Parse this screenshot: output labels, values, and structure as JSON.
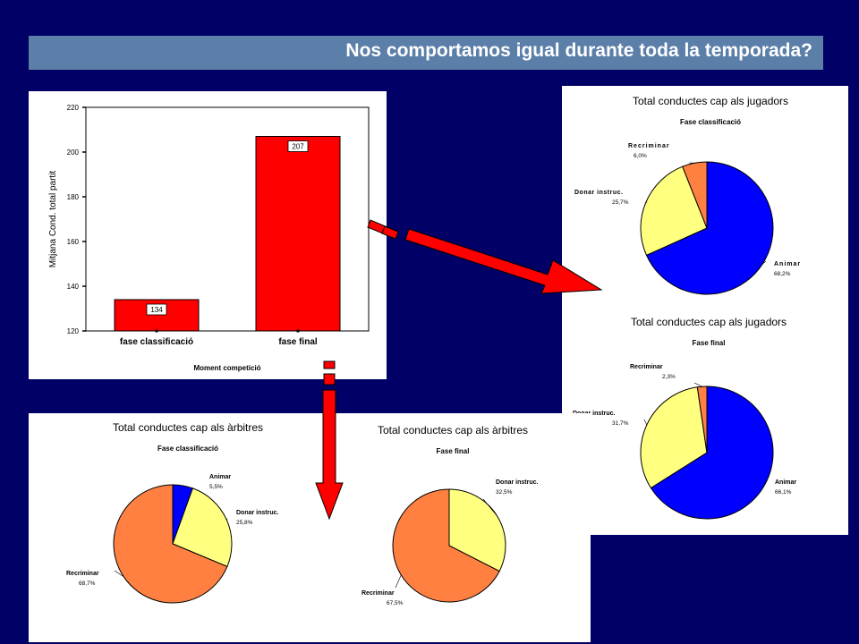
{
  "slide": {
    "title": "Nos comportamos igual durante toda la temporada?"
  },
  "colors": {
    "background": "#000066",
    "title_bar": "#5b7fa8",
    "bar": "#ff0000",
    "animar": "#0000ff",
    "donar": "#ffff80",
    "recriminar": "#ff8040",
    "arrow": "#ff0000"
  },
  "chart_data": [
    {
      "type": "bar",
      "categories": [
        "fase classificació",
        "fase final"
      ],
      "values": [
        134,
        207
      ],
      "data_labels": [
        "134",
        "207"
      ],
      "xlabel": "Moment competició",
      "ylabel": "Mitjana Cond. total partit",
      "ylim": [
        120,
        220
      ],
      "yticks": [
        120,
        140,
        160,
        180,
        200,
        220
      ],
      "grid": false
    },
    {
      "type": "pie",
      "title": "Total conductes cap als jugadors",
      "subtitle": "Fase classificació",
      "slices": [
        {
          "label": "Animar",
          "value": 68.2,
          "pct_label": "68,2%",
          "color": "#0000ff"
        },
        {
          "label": "Donar instruc.",
          "value": 25.7,
          "pct_label": "25,7%",
          "color": "#ffff80"
        },
        {
          "label": "Recriminar",
          "value": 6.0,
          "pct_label": "6,0%",
          "color": "#ff8040"
        }
      ]
    },
    {
      "type": "pie",
      "title": "Total conductes cap als jugadors",
      "subtitle": "Fase final",
      "slices": [
        {
          "label": "Animar",
          "value": 66.1,
          "pct_label": "66,1%",
          "color": "#0000ff"
        },
        {
          "label": "Donar instruc.",
          "value": 31.7,
          "pct_label": "31,7%",
          "color": "#ffff80"
        },
        {
          "label": "Recriminar",
          "value": 2.3,
          "pct_label": "2,3%",
          "color": "#ff8040"
        }
      ]
    },
    {
      "type": "pie",
      "title": "Total conductes cap als àrbitres",
      "subtitle": "Fase classificació",
      "slices": [
        {
          "label": "Animar",
          "value": 5.5,
          "pct_label": "5,5%",
          "color": "#0000ff"
        },
        {
          "label": "Donar instruc.",
          "value": 25.8,
          "pct_label": "25,8%",
          "color": "#ffff80"
        },
        {
          "label": "Recriminar",
          "value": 68.7,
          "pct_label": "68,7%",
          "color": "#ff8040"
        }
      ]
    },
    {
      "type": "pie",
      "title": "Total conductes cap als àrbitres",
      "subtitle": "Fase final",
      "slices": [
        {
          "label": "Donar instruc.",
          "value": 32.5,
          "pct_label": "32,5%",
          "color": "#ffff80"
        },
        {
          "label": "Recriminar",
          "value": 67.5,
          "pct_label": "67,5%",
          "color": "#ff8040"
        }
      ]
    }
  ]
}
